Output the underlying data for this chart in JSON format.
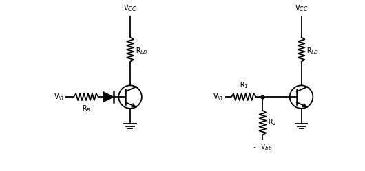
{
  "fig_width": 5.3,
  "fig_height": 2.49,
  "dpi": 100,
  "bg_color": "#ffffff",
  "line_color": "#000000",
  "line_width": 1.3,
  "circuit1": {
    "vin_label": "V$_{in}$",
    "rb_label": "R$_B$",
    "vcc_label": "V$_{CC}$",
    "rld_label": "R$_{LD}$"
  },
  "circuit2": {
    "vin_label": "V$_{in}$",
    "r1_label": "R$_1$",
    "r2_label": "R$_2$",
    "vcc_label": "V$_{CC}$",
    "rld_label": "R$_{LD}$",
    "vbb_label": "- V$_{bb}$"
  }
}
